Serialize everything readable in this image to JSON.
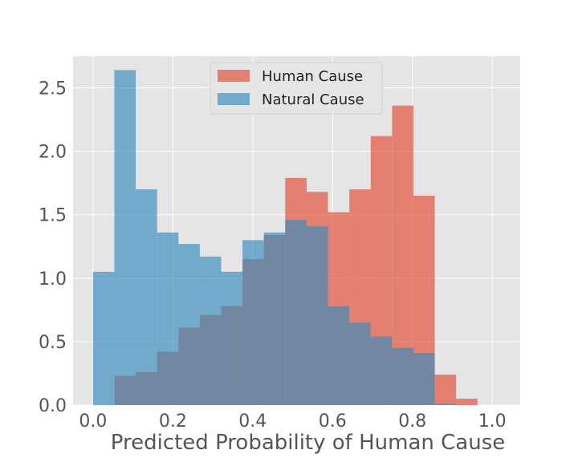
{
  "chart_data": {
    "type": "bar",
    "subtype": "overlapping-histogram",
    "title": "",
    "xlabel": "Predicted Probability of Human Cause",
    "ylabel": "",
    "xlim": [
      -0.05,
      1.07
    ],
    "ylim": [
      0,
      2.75
    ],
    "x_ticks": [
      0.0,
      0.2,
      0.4,
      0.6,
      0.8,
      1.0
    ],
    "x_tick_labels": [
      "0.0",
      "0.2",
      "0.4",
      "0.6",
      "0.8",
      "1.0"
    ],
    "y_ticks": [
      0.0,
      0.5,
      1.0,
      1.5,
      2.0,
      2.5
    ],
    "y_tick_labels": [
      "0.0",
      "0.5",
      "1.0",
      "1.5",
      "2.0",
      "2.5"
    ],
    "bin_edges": [
      0.0,
      0.0535,
      0.107,
      0.1605,
      0.214,
      0.2675,
      0.321,
      0.3745,
      0.428,
      0.4815,
      0.535,
      0.5885,
      0.642,
      0.6955,
      0.749,
      0.8025,
      0.856,
      0.9095,
      0.963
    ],
    "grid": true,
    "legend_position": "upper center",
    "series": [
      {
        "name": "Human Cause",
        "color": "#E24A33",
        "alpha": 0.65,
        "values": [
          0.0,
          0.23,
          0.26,
          0.42,
          0.61,
          0.71,
          0.78,
          1.15,
          1.34,
          1.79,
          1.68,
          1.52,
          1.7,
          2.12,
          2.36,
          1.65,
          0.24,
          0.05
        ]
      },
      {
        "name": "Natural Cause",
        "color": "#348ABD",
        "alpha": 0.65,
        "values": [
          1.05,
          2.64,
          1.7,
          1.36,
          1.27,
          1.17,
          1.05,
          1.3,
          1.36,
          1.46,
          1.41,
          0.78,
          0.65,
          0.54,
          0.45,
          0.41,
          0.01,
          0.0
        ]
      }
    ]
  }
}
